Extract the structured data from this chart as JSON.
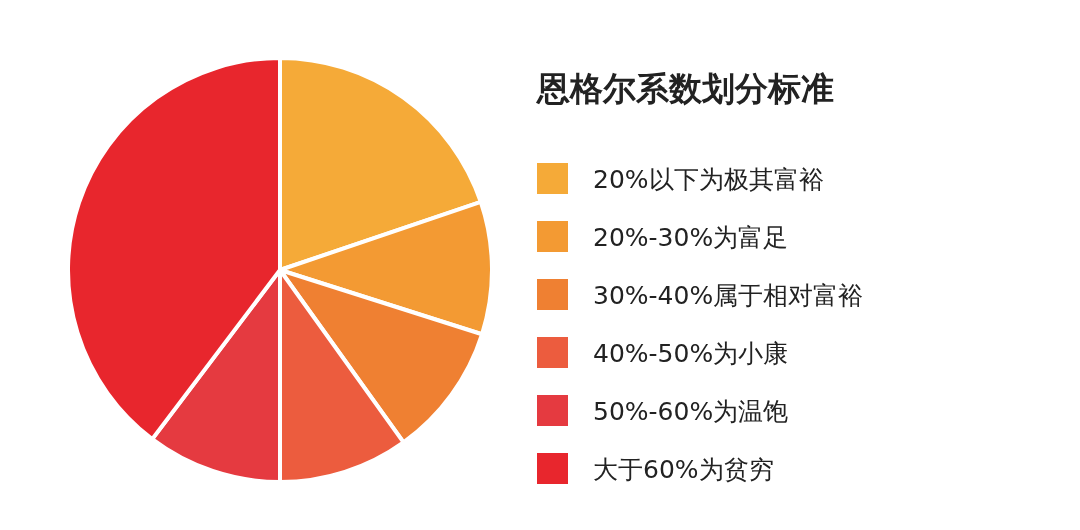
{
  "chart_data": {
    "type": "pie",
    "title": "恩格尔系数划分标准",
    "categories": [
      "20%以下为极其富裕",
      "20%-30%为富足",
      "30%-40%属于相对富裕",
      "40%-50%为小康",
      "50%-60%为温饱",
      "大于60%为贫穷"
    ],
    "values": [
      19.8,
      10.1,
      10.2,
      9.9,
      10.3,
      39.7
    ],
    "colors": [
      "#f5aa38",
      "#f39a33",
      "#ef8032",
      "#ec5c3e",
      "#e53a40",
      "#e8262d"
    ],
    "legend": "right"
  }
}
